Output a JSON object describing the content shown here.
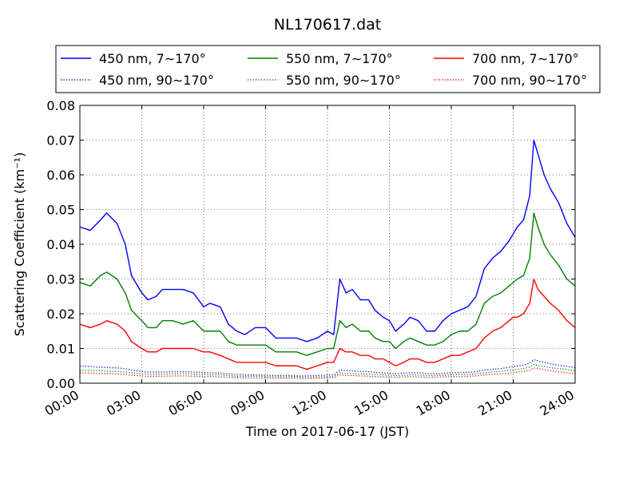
{
  "chart_data": {
    "type": "line",
    "title": "NL170617.dat",
    "xlabel": "Time on 2017-06-17 (JST)",
    "ylabel": "Scattering Coefficient (km⁻¹)",
    "x_ticks": [
      "00:00",
      "03:00",
      "06:00",
      "09:00",
      "12:00",
      "15:00",
      "18:00",
      "21:00",
      "24:00"
    ],
    "y_ticks": [
      "0.00",
      "0.01",
      "0.02",
      "0.03",
      "0.04",
      "0.05",
      "0.06",
      "0.07",
      "0.08"
    ],
    "xlim": [
      0,
      24
    ],
    "ylim": [
      0,
      0.08
    ],
    "grid": true,
    "legend_position": "top",
    "x_hours": [
      0,
      0.5,
      1,
      1.3,
      1.8,
      2.2,
      2.5,
      3,
      3.3,
      3.7,
      4,
      4.5,
      5,
      5.5,
      6,
      6.3,
      6.8,
      7.2,
      7.6,
      8,
      8.5,
      9,
      9.5,
      10,
      10.5,
      11,
      11.5,
      12,
      12.3,
      12.6,
      12.9,
      13.2,
      13.6,
      14,
      14.3,
      14.7,
      15,
      15.3,
      15.7,
      16,
      16.4,
      16.8,
      17.2,
      17.6,
      18,
      18.4,
      18.8,
      19.2,
      19.6,
      20,
      20.4,
      20.8,
      21,
      21.2,
      21.5,
      21.8,
      22,
      22.2,
      22.5,
      22.8,
      23.2,
      23.6,
      24
    ],
    "series": [
      {
        "name": "450 nm, 7∼170°",
        "color": "#0000ff",
        "style": "solid",
        "values": [
          0.045,
          0.044,
          0.047,
          0.049,
          0.046,
          0.04,
          0.031,
          0.026,
          0.024,
          0.025,
          0.027,
          0.027,
          0.027,
          0.026,
          0.022,
          0.023,
          0.022,
          0.017,
          0.015,
          0.014,
          0.016,
          0.016,
          0.013,
          0.013,
          0.013,
          0.012,
          0.013,
          0.015,
          0.014,
          0.03,
          0.026,
          0.027,
          0.024,
          0.024,
          0.021,
          0.019,
          0.018,
          0.015,
          0.017,
          0.019,
          0.018,
          0.015,
          0.015,
          0.018,
          0.02,
          0.021,
          0.022,
          0.025,
          0.033,
          0.036,
          0.038,
          0.041,
          0.043,
          0.045,
          0.047,
          0.054,
          0.07,
          0.066,
          0.06,
          0.056,
          0.052,
          0.046,
          0.042
        ]
      },
      {
        "name": "450 nm, 90∼170°",
        "color": "#0000ff",
        "style": "dotted",
        "values": [
          0.005,
          0.0048,
          0.0046,
          0.0045,
          0.0044,
          0.0042,
          0.0038,
          0.0034,
          0.0032,
          0.0032,
          0.0032,
          0.0033,
          0.0033,
          0.0032,
          0.0031,
          0.003,
          0.0029,
          0.0027,
          0.0025,
          0.0024,
          0.0024,
          0.0023,
          0.0022,
          0.0022,
          0.0021,
          0.0021,
          0.0022,
          0.0024,
          0.0024,
          0.0038,
          0.0036,
          0.0036,
          0.0034,
          0.0033,
          0.0031,
          0.003,
          0.0029,
          0.0028,
          0.0029,
          0.003,
          0.003,
          0.0028,
          0.0027,
          0.0028,
          0.003,
          0.0031,
          0.0031,
          0.0033,
          0.0038,
          0.004,
          0.0042,
          0.0046,
          0.0048,
          0.005,
          0.0052,
          0.0058,
          0.0068,
          0.0064,
          0.006,
          0.0056,
          0.0052,
          0.0048,
          0.0045
        ]
      },
      {
        "name": "550 nm, 7∼170°",
        "color": "#008000",
        "style": "solid",
        "values": [
          0.029,
          0.028,
          0.031,
          0.032,
          0.03,
          0.026,
          0.021,
          0.018,
          0.016,
          0.016,
          0.018,
          0.018,
          0.017,
          0.018,
          0.015,
          0.015,
          0.015,
          0.012,
          0.011,
          0.011,
          0.011,
          0.011,
          0.009,
          0.009,
          0.009,
          0.008,
          0.009,
          0.01,
          0.01,
          0.018,
          0.016,
          0.017,
          0.015,
          0.015,
          0.013,
          0.012,
          0.012,
          0.01,
          0.012,
          0.013,
          0.012,
          0.011,
          0.011,
          0.012,
          0.014,
          0.015,
          0.015,
          0.017,
          0.023,
          0.025,
          0.026,
          0.028,
          0.029,
          0.03,
          0.031,
          0.036,
          0.049,
          0.045,
          0.04,
          0.037,
          0.034,
          0.03,
          0.028
        ]
      },
      {
        "name": "550 nm, 90∼170°",
        "color": "#008000",
        "style": "dotted",
        "values": [
          0.0038,
          0.0037,
          0.0036,
          0.0035,
          0.0034,
          0.0032,
          0.003,
          0.0027,
          0.0026,
          0.0026,
          0.0026,
          0.0027,
          0.0027,
          0.0026,
          0.0025,
          0.0024,
          0.0024,
          0.0022,
          0.002,
          0.002,
          0.002,
          0.0019,
          0.0018,
          0.0018,
          0.0018,
          0.0017,
          0.0018,
          0.0019,
          0.0019,
          0.003,
          0.0028,
          0.0028,
          0.0027,
          0.0026,
          0.0025,
          0.0024,
          0.0023,
          0.0022,
          0.0023,
          0.0024,
          0.0024,
          0.0022,
          0.0022,
          0.0023,
          0.0024,
          0.0025,
          0.0025,
          0.0027,
          0.003,
          0.0032,
          0.0034,
          0.0037,
          0.0039,
          0.004,
          0.0042,
          0.0046,
          0.0054,
          0.0051,
          0.0048,
          0.0045,
          0.0042,
          0.0039,
          0.0036
        ]
      },
      {
        "name": "700 nm, 7∼170°",
        "color": "#ff0000",
        "style": "solid",
        "values": [
          0.017,
          0.016,
          0.017,
          0.018,
          0.017,
          0.015,
          0.012,
          0.01,
          0.009,
          0.009,
          0.01,
          0.01,
          0.01,
          0.01,
          0.009,
          0.009,
          0.008,
          0.007,
          0.006,
          0.006,
          0.006,
          0.006,
          0.005,
          0.005,
          0.005,
          0.004,
          0.005,
          0.006,
          0.006,
          0.01,
          0.009,
          0.009,
          0.008,
          0.008,
          0.007,
          0.007,
          0.006,
          0.005,
          0.006,
          0.007,
          0.007,
          0.006,
          0.006,
          0.007,
          0.008,
          0.008,
          0.009,
          0.01,
          0.013,
          0.015,
          0.016,
          0.018,
          0.019,
          0.019,
          0.02,
          0.023,
          0.03,
          0.027,
          0.025,
          0.023,
          0.021,
          0.018,
          0.016
        ]
      },
      {
        "name": "700 nm, 90∼170°",
        "color": "#ff0000",
        "style": "dotted",
        "values": [
          0.003,
          0.0029,
          0.0028,
          0.0028,
          0.0027,
          0.0025,
          0.0023,
          0.0021,
          0.002,
          0.002,
          0.002,
          0.0021,
          0.0021,
          0.002,
          0.0019,
          0.0019,
          0.0018,
          0.0017,
          0.0016,
          0.0015,
          0.0015,
          0.0015,
          0.0014,
          0.0014,
          0.0014,
          0.0013,
          0.0014,
          0.0015,
          0.0015,
          0.0024,
          0.0022,
          0.0022,
          0.0021,
          0.002,
          0.0019,
          0.0018,
          0.0018,
          0.0017,
          0.0018,
          0.0019,
          0.0018,
          0.0017,
          0.0017,
          0.0018,
          0.0019,
          0.0019,
          0.002,
          0.0021,
          0.0024,
          0.0025,
          0.0027,
          0.0029,
          0.0031,
          0.0032,
          0.0034,
          0.0037,
          0.0044,
          0.0042,
          0.0039,
          0.0036,
          0.0033,
          0.003,
          0.0028
        ]
      }
    ]
  }
}
